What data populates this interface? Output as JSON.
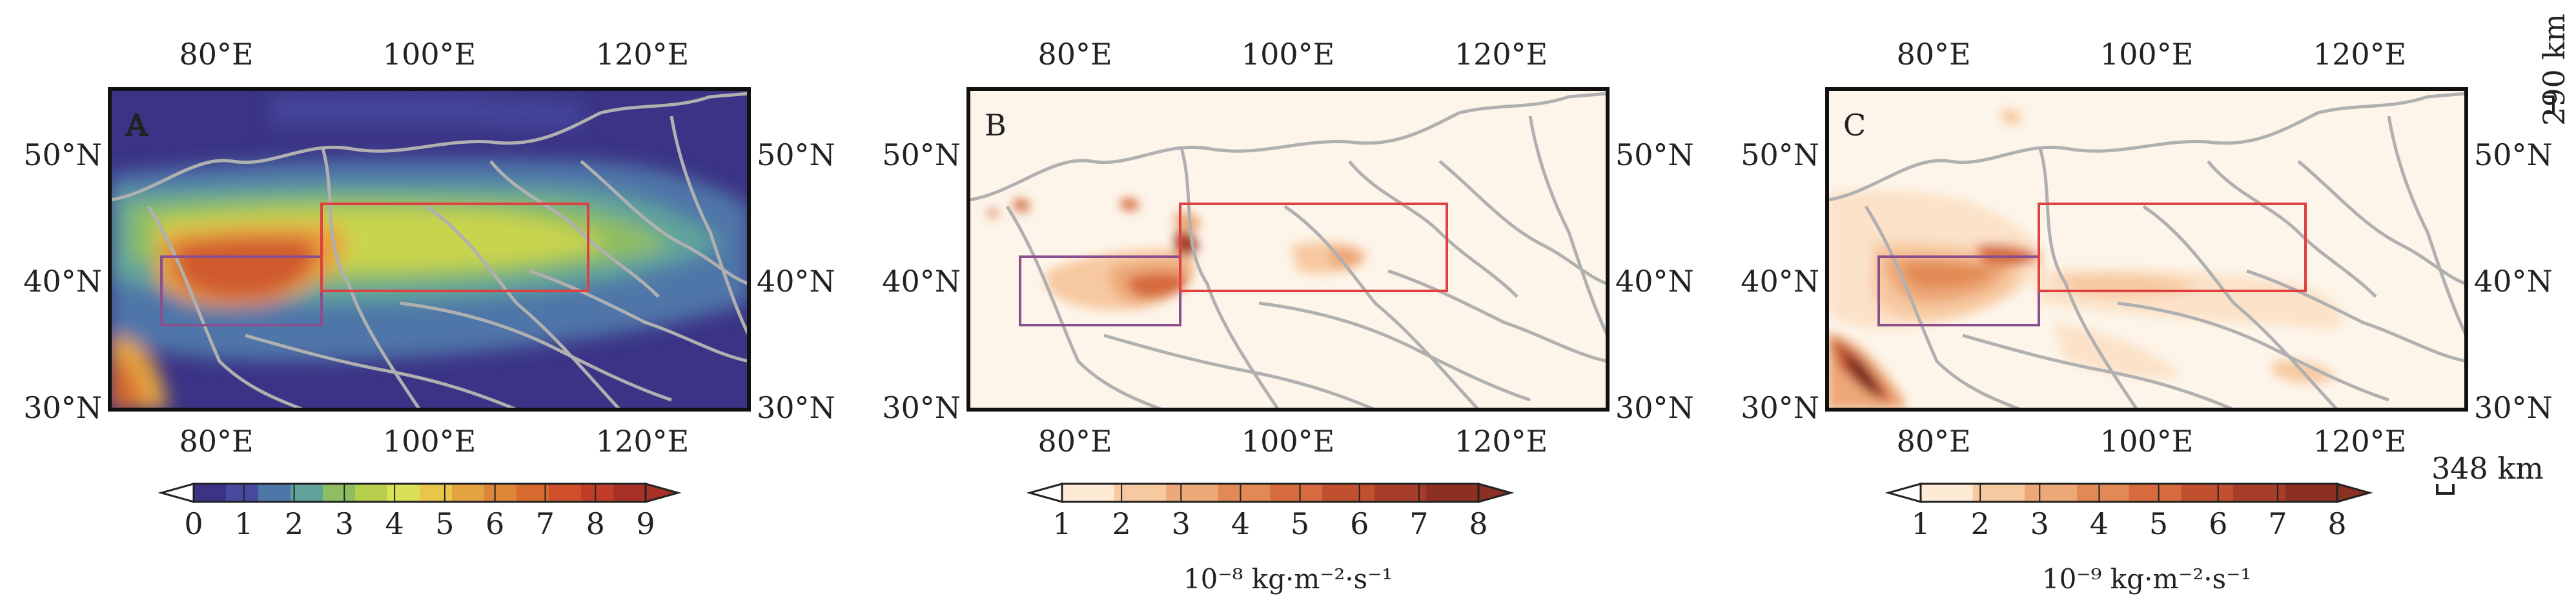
{
  "scale_bars": {
    "vertical": "290 km",
    "horizontal": "348 km"
  },
  "axes": {
    "lon_ticks": [
      "80°E",
      "100°E",
      "120°E"
    ],
    "lat_ticks": [
      "50°N",
      "40°N",
      "30°N"
    ]
  },
  "panels": [
    {
      "id": "A",
      "label": "A",
      "colorbar_ticks": [
        "0",
        "1",
        "2",
        "3",
        "4",
        "5",
        "6",
        "7",
        "8",
        "9"
      ],
      "colorbar_colors": [
        "#3b3486",
        "#474a9f",
        "#4f76a8",
        "#61a39b",
        "#8fbd63",
        "#b8cf4e",
        "#dbe156",
        "#e9c64a",
        "#e3a341",
        "#de8638",
        "#d76a2f",
        "#cf4f2a",
        "#c13d29",
        "#a83026"
      ],
      "colorbar_extend": "max",
      "unit": ""
    },
    {
      "id": "B",
      "label": "B",
      "colorbar_ticks": [
        "1",
        "2",
        "3",
        "4",
        "5",
        "6",
        "7",
        "8"
      ],
      "colorbar_colors": [
        "#fdebd6",
        "#f7c9a0",
        "#eda878",
        "#e28a55",
        "#d56b3e",
        "#c1502e",
        "#a53d28",
        "#8c3024"
      ],
      "colorbar_extend": "both",
      "unit": "10⁻⁸ kg·m⁻²·s⁻¹"
    },
    {
      "id": "C",
      "label": "C",
      "colorbar_ticks": [
        "1",
        "2",
        "3",
        "4",
        "5",
        "6",
        "7",
        "8"
      ],
      "colorbar_colors": [
        "#fdebd6",
        "#f7c9a0",
        "#eda878",
        "#e28a55",
        "#d56b3e",
        "#c1502e",
        "#a53d28",
        "#8c3024"
      ],
      "colorbar_extend": "both",
      "unit": "10⁻⁹ kg·m⁻²·s⁻¹"
    }
  ],
  "regions": {
    "west_box": {
      "lon": [
        75,
        90
      ],
      "lat": [
        36,
        42
      ],
      "color": "#8b4e8f"
    },
    "east_box": {
      "lon": [
        90,
        115
      ],
      "lat": [
        39,
        46
      ],
      "color": "#e04040"
    }
  }
}
